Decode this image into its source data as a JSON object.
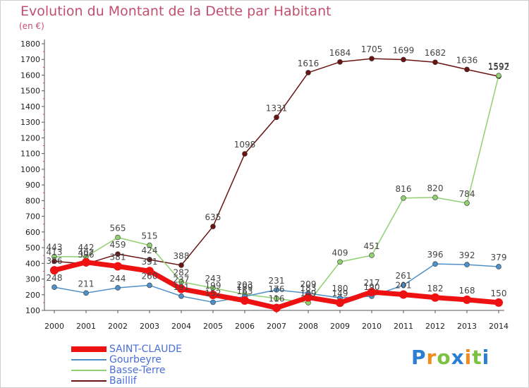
{
  "title": "Evolution du Montant de la Dette par Habitant",
  "unit_label": "(en €)",
  "logo": {
    "text": "Proxiti",
    "colors": [
      "#2c7fd0",
      "#f28c1b",
      "#7cc242",
      "#2c7fd0",
      "#f28c1b",
      "#7cc242",
      "#2c7fd0"
    ]
  },
  "chart_data": {
    "type": "line",
    "x": [
      "2000",
      "2001",
      "2002",
      "2003",
      "2004",
      "2005",
      "2006",
      "2007",
      "2008",
      "2009",
      "2010",
      "2011",
      "2012",
      "2013",
      "2014"
    ],
    "ylim": [
      100,
      1800
    ],
    "y_ticks": [
      100,
      200,
      300,
      400,
      500,
      600,
      700,
      800,
      900,
      1000,
      1100,
      1200,
      1300,
      1400,
      1500,
      1600,
      1700,
      1800
    ],
    "grid": false,
    "legend_position": "bottom-left",
    "series": [
      {
        "name": "Baillif",
        "color": "#6b1414",
        "width": 1.5,
        "values": [
          413,
          396,
          459,
          424,
          388,
          635,
          1098,
          1331,
          1616,
          1684,
          1705,
          1699,
          1682,
          1636,
          1592
        ]
      },
      {
        "name": "Basse-Terre",
        "color": "#90d070",
        "width": 1.5,
        "values": [
          443,
          442,
          565,
          515,
          282,
          243,
          203,
          176,
          149,
          409,
          451,
          816,
          820,
          784,
          1597
        ]
      },
      {
        "name": "Gourbeyre",
        "color": "#5090c8",
        "width": 1.5,
        "values": [
          248,
          211,
          244,
          260,
          191,
          152,
          189,
          231,
          209,
          180,
          190,
          261,
          396,
          392,
          379
        ]
      },
      {
        "name": "SAINT-CLAUDE",
        "color": "#ee1111",
        "width": 7,
        "values": [
          356,
          407,
          381,
          351,
          237,
          199,
          163,
          116,
          183,
          149,
          217,
          201,
          182,
          168,
          150
        ]
      }
    ],
    "legend_order": [
      "SAINT-CLAUDE",
      "Gourbeyre",
      "Basse-Terre",
      "Baillif"
    ],
    "data_label_series": [
      "Baillif",
      "Basse-Terre",
      "Gourbeyre",
      "SAINT-CLAUDE"
    ]
  }
}
